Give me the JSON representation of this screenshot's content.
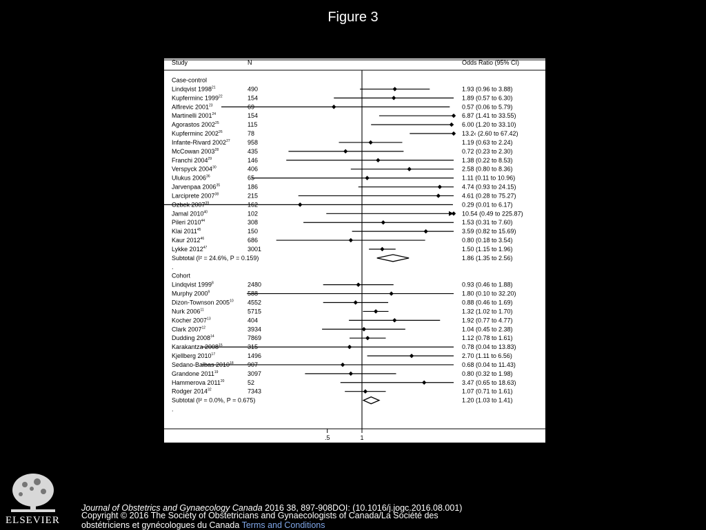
{
  "figure_title": "Figure 3",
  "publisher": "ELSEVIER",
  "citation": {
    "journal": "Journal of Obstetrics and Gynaecology Canada",
    "details": " 2016 38, 897-908DOI: (10.1016/j.jogc.2016.08.001)"
  },
  "copyright": "Copyright © 2016 The Society of Obstetricians and Gynaecologists of Canada/La Société des obstétriciens et gynécologues du Canada ",
  "terms_link": "Terms and Conditions",
  "chart_data": {
    "type": "forest",
    "columns": [
      "Study",
      "N",
      "Odds Ratio (95% CI)"
    ],
    "x_ticks": [
      ".5",
      "1"
    ],
    "reference_line": 1,
    "x_scale": "log",
    "groups": [
      {
        "name": "Case-control",
        "studies": [
          {
            "study": "Lindqvist 1998",
            "ref": "21",
            "n": "490",
            "or": 1.93,
            "lo": 0.96,
            "hi": 3.88,
            "ci_text": "1.93 (0.96 to 3.88)"
          },
          {
            "study": "Kupferminc 1999",
            "ref": "22",
            "n": "154",
            "or": 1.89,
            "lo": 0.57,
            "hi": 6.3,
            "ci_text": "1.89 (0.57 to 6.30)"
          },
          {
            "study": "Alfirevic 2001",
            "ref": "23",
            "n": "69",
            "or": 0.57,
            "lo": 0.06,
            "hi": 5.79,
            "ci_text": "0.57 (0.06 to 5.79)"
          },
          {
            "study": "Martinelli 2001",
            "ref": "24",
            "n": "154",
            "or": 6.87,
            "lo": 1.41,
            "hi": 33.55,
            "ci_text": "6.87 (1.41 to 33.55)"
          },
          {
            "study": "Agorastos 2002",
            "ref": "25",
            "n": "115",
            "or": 6.0,
            "lo": 1.2,
            "hi": 33.1,
            "ci_text": "6.00 (1.20 to 33.10)"
          },
          {
            "study": "Kupferminc 2002",
            "ref": "26",
            "n": "78",
            "or": 13.2,
            "lo": 2.6,
            "hi": 67.42,
            "ci_text": "13.2‹ (2.60 to 67.42)"
          },
          {
            "study": "Infante-Rivard 2002",
            "ref": "27",
            "n": "958",
            "or": 1.19,
            "lo": 0.63,
            "hi": 2.24,
            "ci_text": "1.19 (0.63 to 2.24)"
          },
          {
            "study": "McCowan 2003",
            "ref": "28",
            "n": "435",
            "or": 0.72,
            "lo": 0.23,
            "hi": 2.3,
            "ci_text": "0.72 (0.23 to 2.30)"
          },
          {
            "study": "Franchi 2004",
            "ref": "29",
            "n": "146",
            "or": 1.38,
            "lo": 0.22,
            "hi": 8.53,
            "ci_text": "1.38 (0.22 to 8.53)"
          },
          {
            "study": "Verspyck 2004",
            "ref": "30",
            "n": "406",
            "or": 2.58,
            "lo": 0.8,
            "hi": 8.36,
            "ci_text": "2.58 (0.80 to 8.36)"
          },
          {
            "study": "Ulukus 2006",
            "ref": "36",
            "n": "65",
            "or": 1.11,
            "lo": 0.11,
            "hi": 10.96,
            "ci_text": "1.11 (0.11 to 10.96)"
          },
          {
            "study": "Jarvenpaa 2006",
            "ref": "35",
            "n": "186",
            "or": 4.74,
            "lo": 0.93,
            "hi": 24.15,
            "ci_text": "4.74 (0.93 to 24.15)"
          },
          {
            "study": "Larciprete 2007",
            "ref": "38",
            "n": "215",
            "or": 4.61,
            "lo": 0.28,
            "hi": 75.27,
            "ci_text": "4.61 (0.28 to 75.27)"
          },
          {
            "study": "Ozbek 2007",
            "ref": "39",
            "n": "162",
            "or": 0.29,
            "lo": 0.01,
            "hi": 6.17,
            "ci_text": "0.29 (0.01 to 6.17)"
          },
          {
            "study": "Jamal 2010",
            "ref": "40",
            "n": "102",
            "or": 10.54,
            "lo": 0.49,
            "hi": 225.87,
            "ci_text": "10.54 (0.49 to 225.87)",
            "arrow": true
          },
          {
            "study": "Pileri 2010",
            "ref": "44",
            "n": "308",
            "or": 1.53,
            "lo": 0.31,
            "hi": 7.6,
            "ci_text": "1.53 (0.31 to 7.60)"
          },
          {
            "study": "Klai 2011",
            "ref": "45",
            "n": "150",
            "or": 3.59,
            "lo": 0.82,
            "hi": 15.69,
            "ci_text": "3.59 (0.82 to 15.69)"
          },
          {
            "study": "Kaur 2012",
            "ref": "46",
            "n": "686",
            "or": 0.8,
            "lo": 0.18,
            "hi": 3.54,
            "ci_text": "0.80 (0.18 to 3.54)"
          },
          {
            "study": "Lykke 2012",
            "ref": "47",
            "n": "3001",
            "or": 1.5,
            "lo": 1.15,
            "hi": 1.96,
            "ci_text": "1.50 (1.15 to 1.96)"
          }
        ],
        "subtotal": {
          "label": "Subtotal",
          "stat": "(I² = 24.6%, P = 0.159)",
          "or": 1.86,
          "lo": 1.35,
          "hi": 2.56,
          "ci_text": "1.86 (1.35 to 2.56)"
        }
      },
      {
        "name": "Cohort",
        "studies": [
          {
            "study": "Lindqvist 1999",
            "ref": "8",
            "n": "2480",
            "or": 0.93,
            "lo": 0.46,
            "hi": 1.88,
            "ci_text": "0.93 (0.46 to 1.88)"
          },
          {
            "study": "Murphy 2000",
            "ref": "9",
            "n": "588",
            "or": 1.8,
            "lo": 0.1,
            "hi": 32.2,
            "ci_text": "1.80 (0.10 to 32.20)"
          },
          {
            "study": "Dizon-Townson 2005",
            "ref": "10",
            "n": "4552",
            "or": 0.88,
            "lo": 0.46,
            "hi": 1.69,
            "ci_text": "0.88 (0.46 to 1.69)"
          },
          {
            "study": "Nurk 2006",
            "ref": "11",
            "n": "5715",
            "or": 1.32,
            "lo": 1.02,
            "hi": 1.7,
            "ci_text": "1.32 (1.02 to 1.70)"
          },
          {
            "study": "Kocher 2007",
            "ref": "13",
            "n": "404",
            "or": 1.92,
            "lo": 0.77,
            "hi": 4.77,
            "ci_text": "1.92 (0.77 to 4.77)"
          },
          {
            "study": "Clark 2007",
            "ref": "12",
            "n": "3934",
            "or": 1.04,
            "lo": 0.45,
            "hi": 2.38,
            "ci_text": "1.04 (0.45 to 2.38)"
          },
          {
            "study": "Dudding 2008",
            "ref": "14",
            "n": "7869",
            "or": 1.12,
            "lo": 0.78,
            "hi": 1.61,
            "ci_text": "1.12 (0.78 to 1.61)"
          },
          {
            "study": "Karakantza 2008",
            "ref": "15",
            "n": "315",
            "or": 0.78,
            "lo": 0.04,
            "hi": 13.83,
            "ci_text": "0.78 (0.04 to 13.83)"
          },
          {
            "study": "Kjellberg 2010",
            "ref": "17",
            "n": "1496",
            "or": 2.7,
            "lo": 1.11,
            "hi": 6.56,
            "ci_text": "2.70 (1.11 to 6.56)"
          },
          {
            "study": "Sedano-Balbas 2010",
            "ref": "18",
            "n": "907",
            "or": 0.68,
            "lo": 0.04,
            "hi": 11.43,
            "ci_text": "0.68 (0.04 to 11.43)"
          },
          {
            "study": "Grandone 2011",
            "ref": "19",
            "n": "3097",
            "or": 0.8,
            "lo": 0.32,
            "hi": 1.98,
            "ci_text": "0.80 (0.32 to 1.98)"
          },
          {
            "study": "Hammerova 2011",
            "ref": "20",
            "n": "52",
            "or": 3.47,
            "lo": 0.65,
            "hi": 18.63,
            "ci_text": "3.47 (0.65 to 18.63)"
          },
          {
            "study": "Rodger 2014",
            "ref": "32",
            "n": "7343",
            "or": 1.07,
            "lo": 0.71,
            "hi": 1.61,
            "ci_text": "1.07 (0.71 to 1.61)"
          }
        ],
        "subtotal": {
          "label": "Subtotal",
          "stat": "(I² = 0.0%, P = 0.675)",
          "or": 1.2,
          "lo": 1.03,
          "hi": 1.41,
          "ci_text": "1.20 (1.03 to 1.41)"
        }
      }
    ]
  }
}
